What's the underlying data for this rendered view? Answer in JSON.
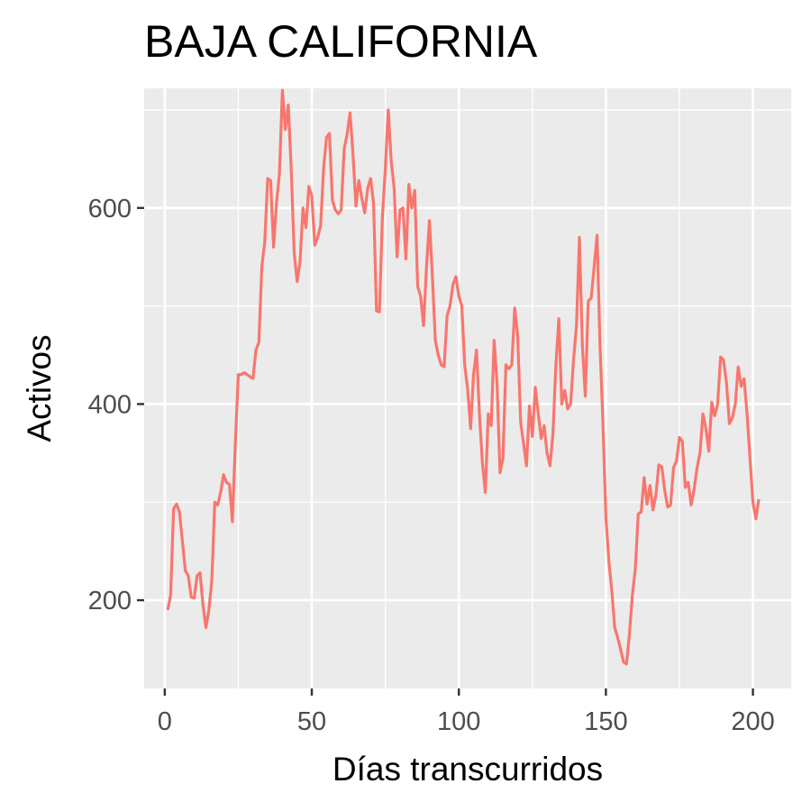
{
  "chart_data": {
    "type": "line",
    "title": "BAJA CALIFORNIA",
    "xlabel": "Días transcurridos",
    "ylabel": "Activos",
    "xlim": [
      -7,
      213
    ],
    "ylim": [
      110,
      722
    ],
    "x_ticks": [
      0,
      50,
      100,
      150,
      200
    ],
    "x_tick_labels": [
      "0",
      "50",
      "100",
      "150",
      "200"
    ],
    "y_ticks": [
      200,
      400,
      600
    ],
    "y_tick_labels": [
      "200",
      "400",
      "600"
    ],
    "grid": true,
    "legend": "none",
    "colors": {
      "panel": "#ebebeb",
      "grid": "#ffffff",
      "line": "#f8766d",
      "tick": "#333333"
    },
    "series": [
      {
        "x": [
          1,
          2,
          3,
          4,
          5,
          6,
          7,
          8,
          9,
          10,
          11,
          12,
          13,
          14,
          15,
          16,
          17,
          18,
          19,
          20,
          21,
          22,
          23,
          24,
          25,
          26,
          27,
          28,
          29,
          30,
          31,
          32,
          33,
          34,
          35,
          36,
          37,
          38,
          39,
          40,
          41,
          42,
          43,
          44,
          45,
          46,
          47,
          48,
          49,
          50,
          51,
          52,
          53,
          54,
          55,
          56,
          57,
          58,
          59,
          60,
          61,
          62,
          63,
          64,
          65,
          66,
          67,
          68,
          69,
          70,
          71,
          72,
          73,
          74,
          75,
          76,
          77,
          78,
          79,
          80,
          81,
          82,
          83,
          84,
          85,
          86,
          87,
          88,
          89,
          90,
          91,
          92,
          93,
          94,
          95,
          96,
          97,
          98,
          99,
          100,
          101,
          102,
          103,
          104,
          105,
          106,
          107,
          108,
          109,
          110,
          111,
          112,
          113,
          114,
          115,
          116,
          117,
          118,
          119,
          120,
          121,
          122,
          123,
          124,
          125,
          126,
          127,
          128,
          129,
          130,
          131,
          132,
          133,
          134,
          135,
          136,
          137,
          138,
          139,
          140,
          141,
          142,
          143,
          144,
          145,
          146,
          147,
          148,
          149,
          150,
          151,
          152,
          153,
          154,
          155,
          156,
          157,
          158,
          159,
          160,
          161,
          162,
          163,
          164,
          165,
          166,
          167,
          168,
          169,
          170,
          171,
          172,
          173,
          174,
          175,
          176,
          177,
          178,
          179,
          180,
          181,
          182,
          183,
          184,
          185,
          186,
          187,
          188,
          189,
          190,
          191,
          192,
          193,
          194,
          195,
          196,
          197,
          198,
          199,
          200,
          201,
          202
        ],
        "values": [
          190,
          205,
          293,
          298,
          290,
          260,
          230,
          225,
          203,
          202,
          225,
          228,
          195,
          172,
          190,
          220,
          300,
          297,
          310,
          328,
          320,
          318,
          280,
          360,
          430,
          430,
          432,
          430,
          428,
          426,
          455,
          463,
          540,
          565,
          630,
          628,
          560,
          605,
          635,
          720,
          680,
          705,
          640,
          555,
          525,
          545,
          600,
          580,
          622,
          612,
          562,
          570,
          582,
          640,
          672,
          676,
          608,
          598,
          594,
          598,
          660,
          675,
          697,
          655,
          602,
          628,
          610,
          595,
          620,
          630,
          605,
          495,
          494,
          590,
          640,
          700,
          648,
          620,
          550,
          598,
          600,
          548,
          624,
          600,
          618,
          520,
          510,
          480,
          540,
          587,
          530,
          465,
          450,
          440,
          438,
          490,
          500,
          522,
          530,
          510,
          500,
          440,
          415,
          375,
          430,
          455,
          390,
          340,
          310,
          390,
          378,
          465,
          420,
          330,
          345,
          440,
          436,
          440,
          498,
          470,
          382,
          360,
          337,
          398,
          367,
          417,
          390,
          365,
          378,
          350,
          337,
          370,
          440,
          487,
          400,
          414,
          395,
          400,
          445,
          480,
          570,
          460,
          408,
          505,
          508,
          540,
          572,
          460,
          380,
          285,
          240,
          210,
          172,
          162,
          150,
          137,
          135,
          165,
          205,
          232,
          288,
          290,
          325,
          298,
          317,
          292,
          307,
          338,
          336,
          312,
          295,
          297,
          335,
          342,
          366,
          362,
          315,
          320,
          297,
          313,
          335,
          350,
          390,
          375,
          352,
          402,
          388,
          400,
          448,
          445,
          422,
          380,
          386,
          400,
          438,
          418,
          426,
          390,
          345,
          300,
          283,
          303
        ]
      }
    ]
  }
}
